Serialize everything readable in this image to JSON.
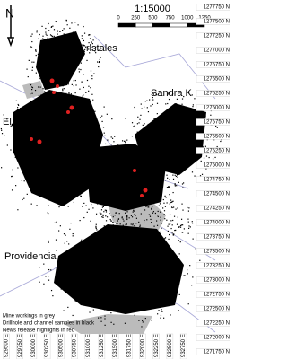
{
  "map": {
    "scale": "1:15000",
    "scale_labels": [
      "0",
      "250",
      "500",
      "750",
      "1000",
      "1250"
    ],
    "north": "N",
    "places": [
      "Cristales",
      "Sandra K",
      "El Silencio",
      "Providencia"
    ],
    "northings": [
      "1277750 N",
      "1277500 N",
      "1277250 N",
      "1277000 N",
      "1276750 N",
      "1276500 N",
      "1276250 N",
      "1276000 N",
      "1275750 N",
      "1275500 N",
      "1275250 N",
      "1275000 N",
      "1274750 N",
      "1274500 N",
      "1274250 N",
      "1274000 N",
      "1273750 N",
      "1273500 N",
      "1273250 N",
      "1273000 N",
      "1272750 N",
      "1272500 N",
      "1272250 N",
      "1272000 N",
      "1271750 N"
    ],
    "eastings": [
      "929500 E",
      "929750 E",
      "930000 E",
      "930250 E",
      "930500 E",
      "930750 E",
      "931000 E",
      "931250 E",
      "931500 E",
      "931750 E",
      "932000 E",
      "932250 E",
      "932500 E",
      "932750 E"
    ],
    "legend": [
      "Mine workings in grey",
      "Drillhole and channel samples in black",
      "News release highlights in red"
    ]
  }
}
